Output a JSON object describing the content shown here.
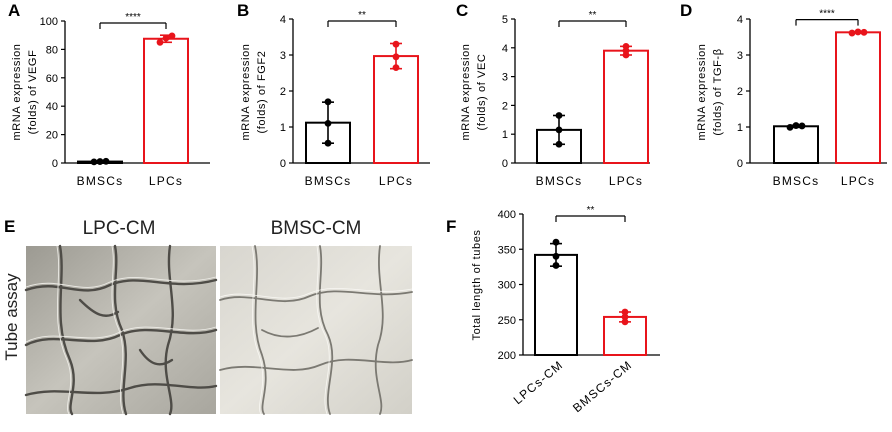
{
  "panels_abcd": [
    {
      "label": "A",
      "ylabel_lines": [
        "mRNA expression",
        "(folds) of VEGF"
      ]
    },
    {
      "label": "B",
      "ylabel_lines": [
        "mRNA expression",
        "(folds) of FGF2"
      ]
    },
    {
      "label": "C",
      "ylabel_lines": [
        "mRNA expression",
        "(folds) of VEC"
      ]
    },
    {
      "label": "D",
      "ylabel_lines": [
        "mRNA expression",
        "(folds) of TGF-β"
      ]
    }
  ],
  "panel_e": {
    "label": "E",
    "side_label": "Tube assay",
    "images": [
      {
        "title": "LPC-CM"
      },
      {
        "title": "BMSC-CM"
      }
    ]
  },
  "panel_f": {
    "label": "F",
    "ylabel": "Total length of tubes"
  },
  "colors": {
    "control": "#000000",
    "treated": "#e8141b"
  },
  "chart_data": [
    {
      "type": "bar",
      "panel": "A",
      "categories": [
        "BMSCs",
        "LPCs"
      ],
      "values": [
        1,
        87.5
      ],
      "errors": [
        0.3,
        2.5
      ],
      "points": [
        [
          0.8,
          1.0,
          1.2
        ],
        [
          85,
          88,
          89.5
        ]
      ],
      "ylim": [
        0,
        100
      ],
      "yticks": [
        0,
        20,
        40,
        60,
        80,
        100
      ],
      "significance": "****"
    },
    {
      "type": "bar",
      "panel": "B",
      "categories": [
        "BMSCs",
        "LPCs"
      ],
      "values": [
        1.12,
        2.97
      ],
      "errors": [
        0.57,
        0.35
      ],
      "points": [
        [
          0.55,
          1.7,
          1.1
        ],
        [
          2.65,
          3.3,
          2.95
        ]
      ],
      "ylim": [
        0,
        4
      ],
      "yticks": [
        0,
        1,
        2,
        3,
        4
      ],
      "significance": "**"
    },
    {
      "type": "bar",
      "panel": "C",
      "categories": [
        "BMSCs",
        "LPCs"
      ],
      "values": [
        1.15,
        3.9
      ],
      "errors": [
        0.5,
        0.15
      ],
      "points": [
        [
          0.65,
          1.65,
          1.15
        ],
        [
          3.75,
          4.05,
          3.9
        ]
      ],
      "ylim": [
        0,
        5
      ],
      "yticks": [
        0,
        1,
        2,
        3,
        4,
        5
      ],
      "significance": "**"
    },
    {
      "type": "bar",
      "panel": "D",
      "categories": [
        "BMSCs",
        "LPCs"
      ],
      "values": [
        1.02,
        3.63
      ],
      "errors": [
        0.03,
        0.02
      ],
      "points": [
        [
          0.99,
          1.04,
          1.03
        ],
        [
          3.61,
          3.64,
          3.63
        ]
      ],
      "ylim": [
        0,
        4
      ],
      "yticks": [
        0,
        1,
        2,
        3,
        4
      ],
      "significance": "****"
    },
    {
      "type": "bar",
      "panel": "F",
      "categories": [
        "LPCs-CM",
        "BMSCs-CM"
      ],
      "values": [
        342,
        254
      ],
      "errors": [
        16,
        7
      ],
      "points": [
        [
          327,
          360,
          340
        ],
        [
          247,
          261,
          254
        ]
      ],
      "ylim": [
        200,
        400
      ],
      "yticks": [
        200,
        250,
        300,
        350,
        400
      ],
      "significance": "**"
    }
  ]
}
